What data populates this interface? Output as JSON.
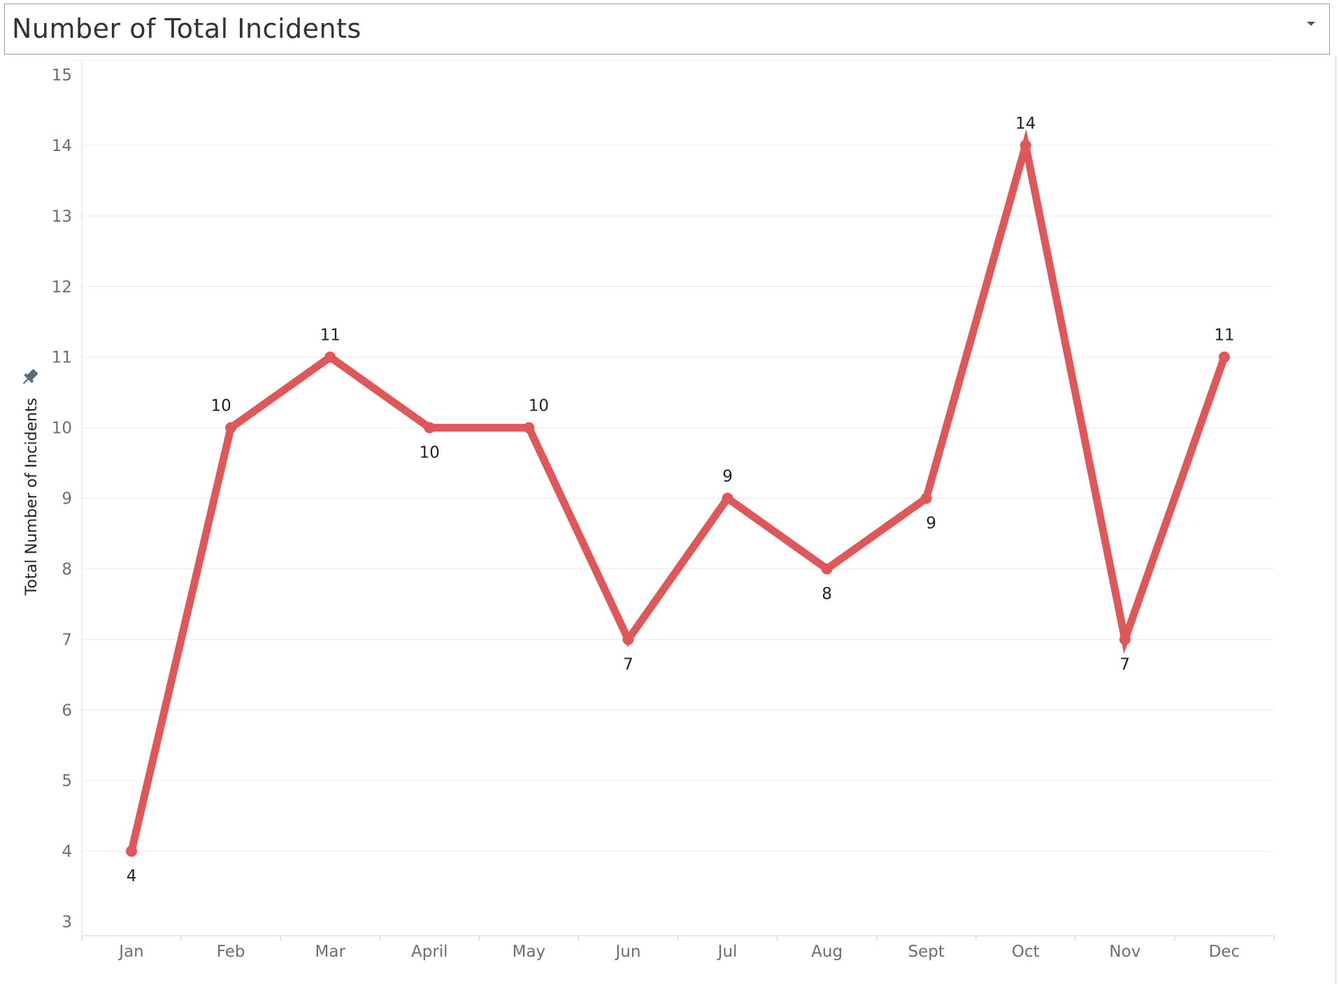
{
  "header": {
    "title": "Number of  Total Incidents",
    "dropdown_icon": "caret-down-icon"
  },
  "chart_data": {
    "type": "line",
    "title": "Number of  Total Incidents",
    "xlabel": "",
    "ylabel": "Total Number of Incidents",
    "categories": [
      "Jan",
      "Feb",
      "Mar",
      "April",
      "May",
      "Jun",
      "Jul",
      "Aug",
      "Sept",
      "Oct",
      "Nov",
      "Dec"
    ],
    "series": [
      {
        "values": [
          4,
          10,
          11,
          10,
          10,
          7,
          9,
          8,
          9,
          14,
          7,
          11
        ],
        "color": "#e05759"
      }
    ],
    "data_label_positions": [
      "below",
      "above",
      "above",
      "below",
      "above",
      "below",
      "above",
      "below",
      "below",
      "above",
      "below",
      "above"
    ],
    "ylim": [
      3,
      15
    ],
    "yticks": [
      3,
      4,
      5,
      6,
      7,
      8,
      9,
      10,
      11,
      12,
      13,
      14,
      15
    ],
    "grid": true,
    "legend": "none",
    "axis_pin_icon": "pin-icon"
  }
}
